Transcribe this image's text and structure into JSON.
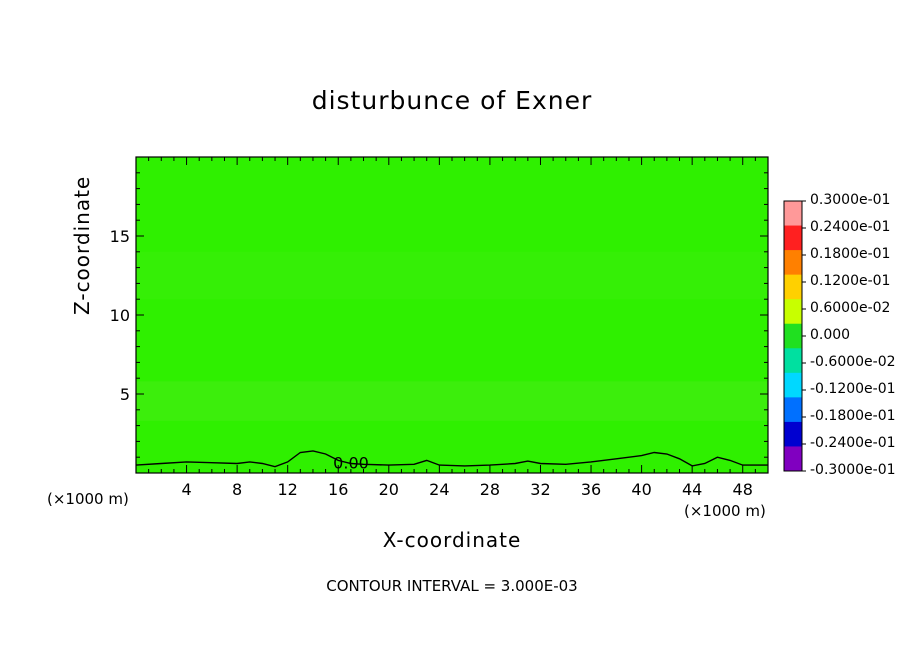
{
  "chart_data": {
    "type": "contour",
    "title": "disturbunce of Exner",
    "xlabel": "X-coordinate",
    "ylabel": "Z-coordinate",
    "x_unit": "(×1000 m)",
    "y_unit": "(×1000 m)",
    "xlim": [
      0,
      50
    ],
    "ylim": [
      0,
      20
    ],
    "x_ticks": [
      4,
      8,
      12,
      16,
      20,
      24,
      28,
      32,
      36,
      40,
      44,
      48
    ],
    "y_ticks": [
      5,
      10,
      15
    ],
    "contour_label": "0.00",
    "contour_interval_text": "CONTOUR INTERVAL = 3.000E-03",
    "zero_contour": {
      "x": [
        0,
        2,
        4,
        6,
        8,
        9,
        10,
        11,
        12,
        13,
        14,
        15,
        16,
        17,
        18,
        20,
        22,
        23,
        24,
        26,
        28,
        30,
        31,
        32,
        34,
        36,
        38,
        40,
        41,
        42,
        43,
        44,
        45,
        46,
        47,
        48,
        50
      ],
      "z": [
        0.5,
        0.6,
        0.7,
        0.65,
        0.6,
        0.7,
        0.6,
        0.4,
        0.7,
        1.3,
        1.4,
        1.2,
        0.8,
        0.6,
        0.55,
        0.5,
        0.55,
        0.8,
        0.5,
        0.45,
        0.5,
        0.6,
        0.75,
        0.6,
        0.55,
        0.7,
        0.9,
        1.1,
        1.3,
        1.2,
        0.9,
        0.45,
        0.6,
        1.0,
        0.8,
        0.5,
        0.5
      ]
    },
    "colorbar": {
      "labels": [
        "0.3000e-01",
        "0.2400e-01",
        "0.1800e-01",
        "0.1200e-01",
        "0.6000e-02",
        "0.000",
        "-0.6000e-02",
        "-0.1200e-01",
        "-0.1800e-01",
        "-0.2400e-01",
        "-0.3000e-01"
      ],
      "colors": [
        "#ff9999",
        "#ff2020",
        "#ff8000",
        "#ffd000",
        "#c8ff00",
        "#20e020",
        "#00e0a0",
        "#00d8ff",
        "#0070ff",
        "#0000d0",
        "#8000c0"
      ]
    },
    "field_colors": {
      "base": "#2ff000",
      "band": "#38ee08",
      "light_band": "#46ec14"
    }
  }
}
